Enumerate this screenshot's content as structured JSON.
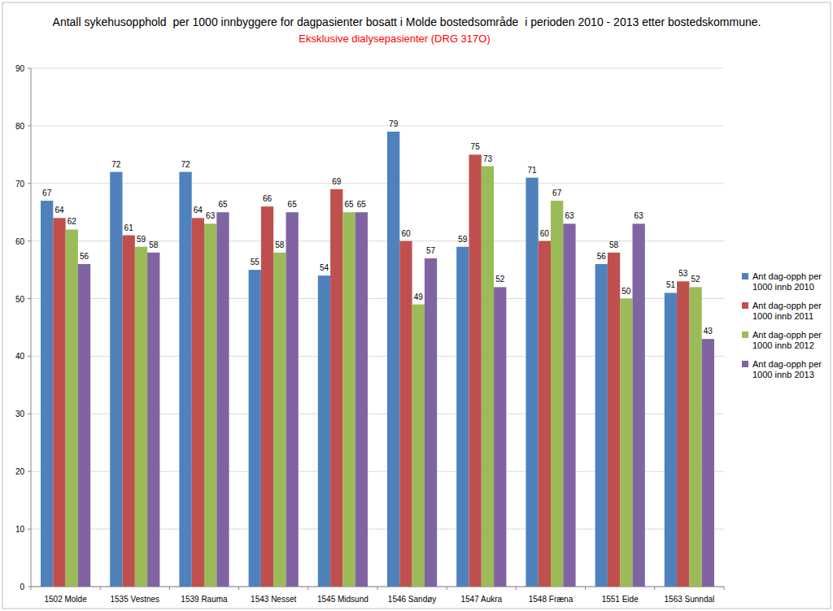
{
  "chart_data": {
    "type": "bar",
    "title": "Antall sykehusopphold  per 1000 innbyggere for dagpasienter bosatt i Molde bostedsområde  i perioden 2010 - 2013 etter bostedskommune.",
    "subtitle": "Eksklusive dialysepasienter (DRG 317O)",
    "categories": [
      "1502 Molde",
      "1535 Vestnes",
      "1539 Rauma",
      "1543 Nesset",
      "1545 Midsund",
      "1546 Sandøy",
      "1547 Aukra",
      "1548 Fræna",
      "1551 Eide",
      "1563 Sunndal"
    ],
    "series": [
      {
        "name": "Ant dag-opph per 1000 innb 2010",
        "color": "#4f81bd",
        "values": [
          67,
          72,
          72,
          55,
          54,
          79,
          59,
          71,
          56,
          51
        ]
      },
      {
        "name": "Ant dag-opph per 1000 innb 2011",
        "color": "#c0504d",
        "values": [
          64,
          61,
          64,
          66,
          69,
          60,
          75,
          60,
          58,
          53
        ]
      },
      {
        "name": "Ant dag-opph per 1000 innb 2012",
        "color": "#9bbb59",
        "values": [
          62,
          59,
          63,
          58,
          65,
          49,
          73,
          67,
          50,
          52
        ]
      },
      {
        "name": "Ant dag-opph per 1000 innb 2013",
        "color": "#8064a2",
        "values": [
          56,
          58,
          65,
          65,
          65,
          57,
          52,
          63,
          63,
          43
        ]
      }
    ],
    "ylim": [
      0,
      90
    ],
    "yticks": [
      0,
      10,
      20,
      30,
      40,
      50,
      60,
      70,
      80,
      90
    ],
    "grid": true,
    "legend": "right",
    "data_labels": true
  }
}
